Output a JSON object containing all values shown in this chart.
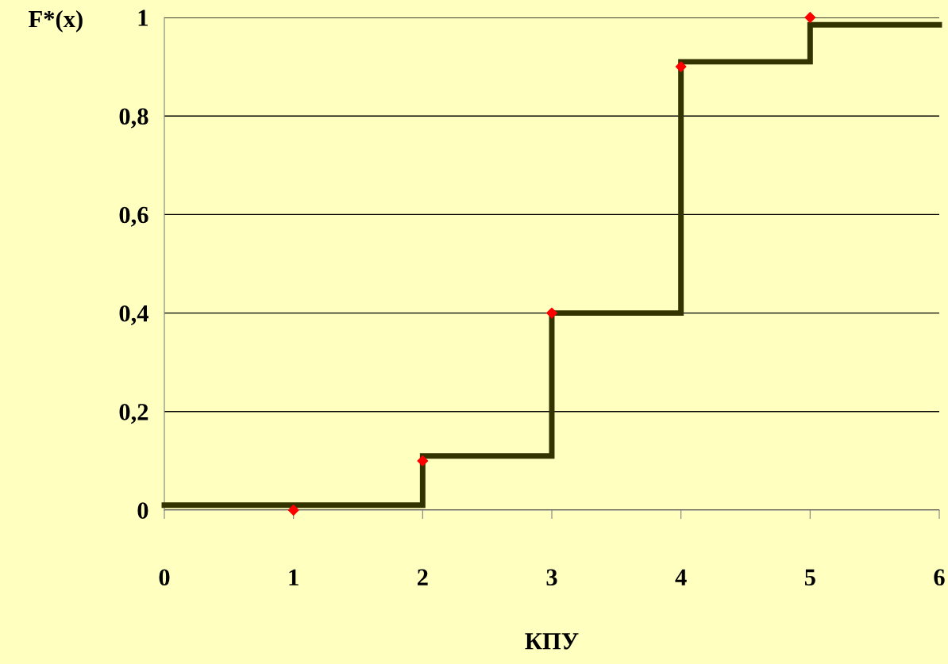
{
  "chart_data": {
    "type": "step",
    "xlabel": "КПУ",
    "ylabel": "F*(x)",
    "series": [
      {
        "color": "#333300",
        "x": [
          0,
          2,
          3,
          4,
          5,
          6
        ],
        "values": [
          0.01,
          0.11,
          0.4,
          0.91,
          0.985,
          0.985
        ],
        "marker": "none"
      },
      {
        "type": "scatter",
        "color": "#ff0000",
        "x": [
          1,
          2,
          3,
          4,
          5
        ],
        "values": [
          0,
          0.1,
          0.4,
          0.9,
          1
        ],
        "marker": "diamond"
      }
    ],
    "xlim": [
      0,
      6
    ],
    "xticks": [
      0,
      1,
      2,
      3,
      4,
      5,
      6
    ],
    "ylim": [
      0,
      1
    ],
    "yticks": [
      {
        "value": 0,
        "label": "0"
      },
      {
        "value": 0.2,
        "label": "0,2"
      },
      {
        "value": 0.4,
        "label": "0,4"
      },
      {
        "value": 0.6,
        "label": "0,6"
      },
      {
        "value": 0.8,
        "label": "0,8"
      },
      {
        "value": 1,
        "label": "1"
      }
    ],
    "grid": "y",
    "legend": false
  }
}
